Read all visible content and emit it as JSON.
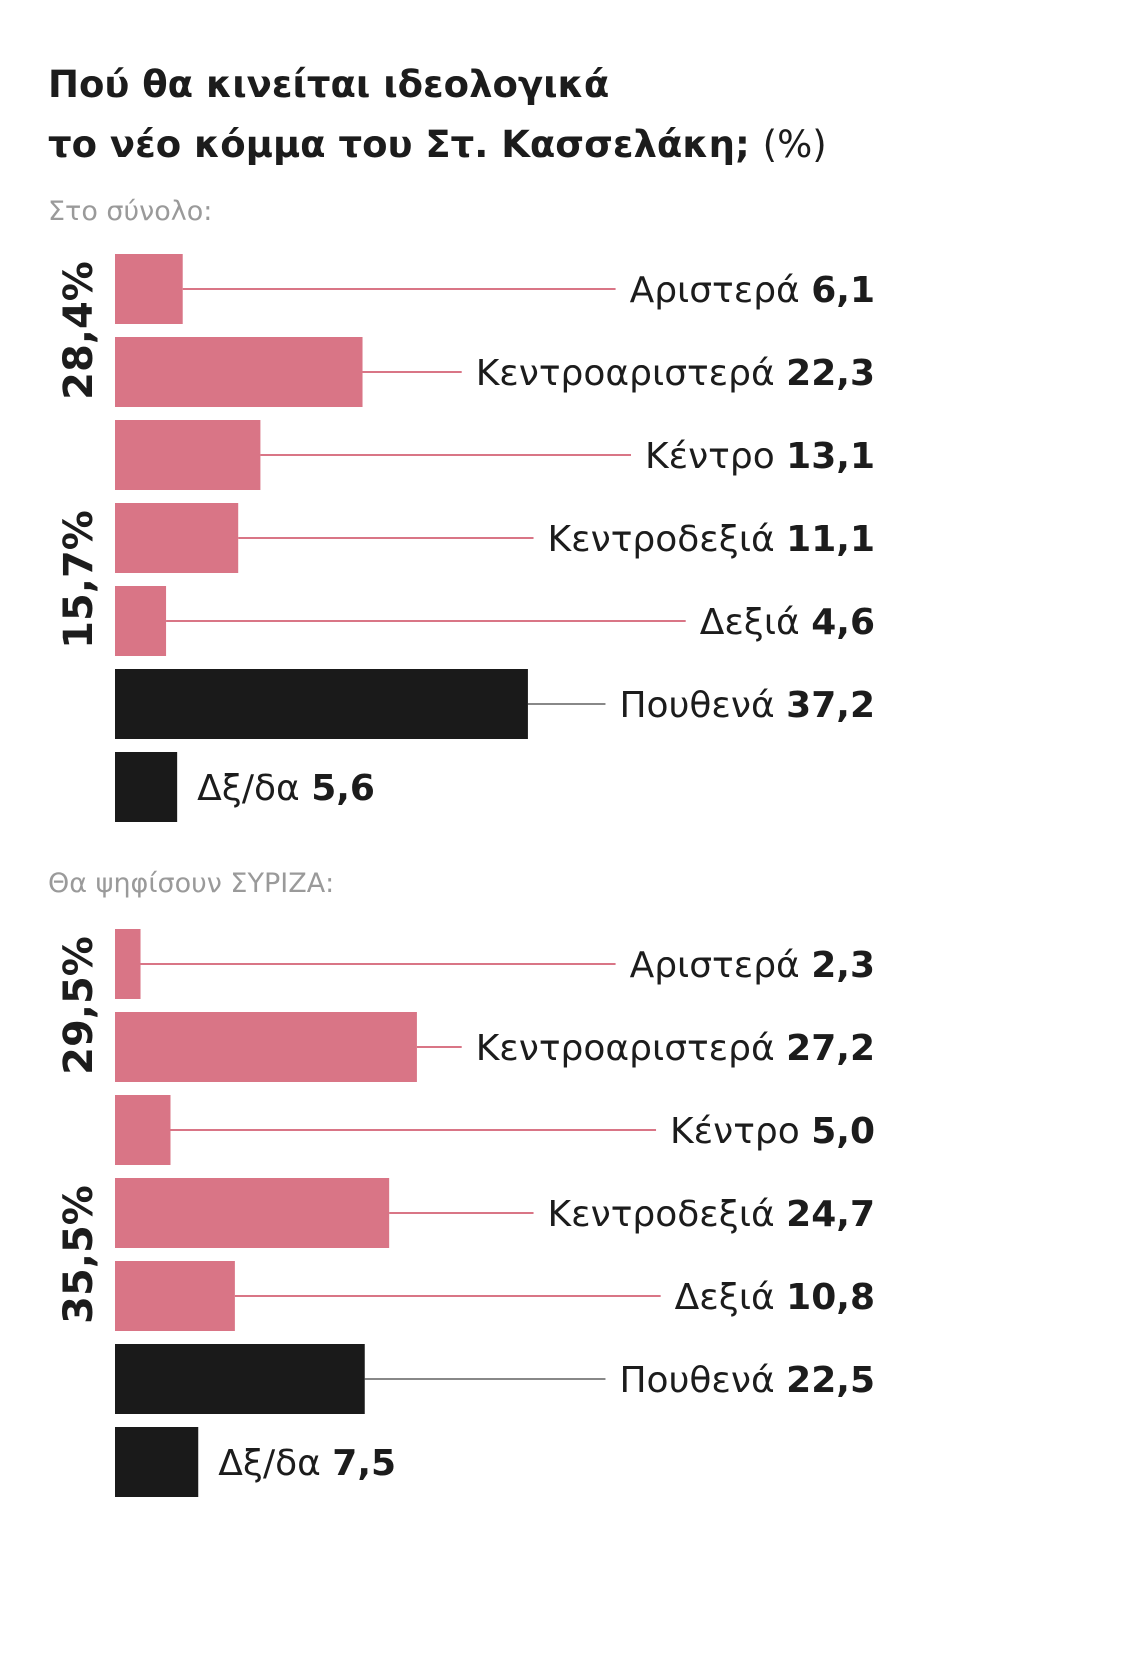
{
  "title_line1": "Πού θα κινείται ιδεολογικά",
  "title_line2": "το νέο κόμμα του Στ. Κασσελάκη;",
  "title_unit": "(%)",
  "colors": {
    "pink": "#d97586",
    "black": "#1a1a1a",
    "leader_pink": "#d97586",
    "leader_grey": "#888888"
  },
  "chart_data": [
    {
      "type": "bar",
      "subtitle": "Στο σύνολο:",
      "categories": [
        "Αριστερά",
        "Κεντροαριστερά",
        "Κέντρο",
        "Κεντροδεξιά",
        "Δεξιά",
        "Πουθενά",
        "Δξ/δα"
      ],
      "values": [
        6.1,
        22.3,
        13.1,
        11.1,
        4.6,
        37.2,
        5.6
      ],
      "value_labels": [
        "6,1",
        "22,3",
        "13,1",
        "11,1",
        "4,6",
        "37,2",
        "5,6"
      ],
      "bar_colors": [
        "pink",
        "pink",
        "pink",
        "pink",
        "pink",
        "black",
        "black"
      ],
      "group_labels": [
        {
          "text": "28,4%",
          "rows": [
            0,
            1
          ]
        },
        {
          "text": "15,7%",
          "rows": [
            3,
            4
          ]
        }
      ]
    },
    {
      "type": "bar",
      "subtitle": "Θα ψηφίσουν ΣΥΡΙΖΑ:",
      "categories": [
        "Αριστερά",
        "Κεντροαριστερά",
        "Κέντρο",
        "Κεντροδεξιά",
        "Δεξιά",
        "Πουθενά",
        "Δξ/δα"
      ],
      "values": [
        2.3,
        27.2,
        5.0,
        24.7,
        10.8,
        22.5,
        7.5
      ],
      "value_labels": [
        "2,3",
        "27,2",
        "5,0",
        "24,7",
        "10,8",
        "22,5",
        "7,5"
      ],
      "bar_colors": [
        "pink",
        "pink",
        "pink",
        "pink",
        "pink",
        "black",
        "black"
      ],
      "group_labels": [
        {
          "text": "29,5%",
          "rows": [
            0,
            1
          ]
        },
        {
          "text": "35,5%",
          "rows": [
            3,
            4
          ]
        }
      ]
    }
  ]
}
